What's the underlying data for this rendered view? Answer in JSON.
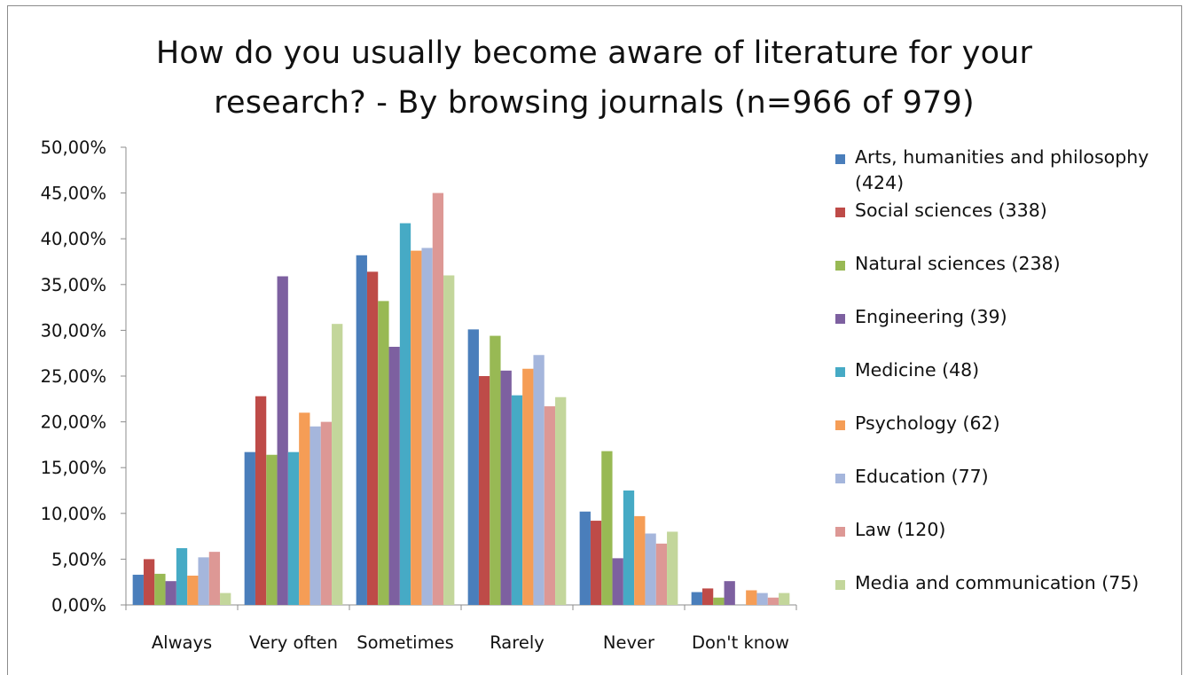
{
  "chart_data": {
    "type": "bar",
    "title": "How do you usually become aware of literature for your research? - By browsing journals (n=966 of 979)",
    "title_lines": [
      "How do you usually become  aware of literature for your",
      "research? - By browsing journals (n=966 of 979)"
    ],
    "categories": [
      "Always",
      "Very often",
      "Sometimes",
      "Rarely",
      "Never",
      "Don't know"
    ],
    "ylim": [
      0,
      50
    ],
    "y_ticks": [
      "0,00%",
      "5,00%",
      "10,00%",
      "15,00%",
      "20,00%",
      "25,00%",
      "30,00%",
      "35,00%",
      "40,00%",
      "45,00%",
      "50,00%"
    ],
    "grid": false,
    "legend_position": "right",
    "series": [
      {
        "name": "Arts, humanities and philosophy (424)",
        "color": "#4a7ebb",
        "values": [
          3.3,
          16.7,
          38.2,
          30.1,
          10.2,
          1.4
        ]
      },
      {
        "name": "Social sciences (338)",
        "color": "#be4b48",
        "values": [
          5.0,
          22.8,
          36.4,
          25.0,
          9.2,
          1.8
        ]
      },
      {
        "name": "Natural sciences (238)",
        "color": "#98b954",
        "values": [
          3.4,
          16.4,
          33.2,
          29.4,
          16.8,
          0.8
        ]
      },
      {
        "name": "Engineering (39)",
        "color": "#7d60a0",
        "values": [
          2.6,
          35.9,
          28.2,
          25.6,
          5.1,
          2.6
        ]
      },
      {
        "name": "Medicine (48)",
        "color": "#46aac5",
        "values": [
          6.2,
          16.7,
          41.7,
          22.9,
          12.5,
          0.0
        ]
      },
      {
        "name": "Psychology (62)",
        "color": "#f59d56",
        "values": [
          3.2,
          21.0,
          38.7,
          25.8,
          9.7,
          1.6
        ]
      },
      {
        "name": "Education (77)",
        "color": "#a5b6dc",
        "values": [
          5.2,
          19.5,
          39.0,
          27.3,
          7.8,
          1.3
        ]
      },
      {
        "name": "Law (120)",
        "color": "#dd9895",
        "values": [
          5.8,
          20.0,
          45.0,
          21.7,
          6.7,
          0.8
        ]
      },
      {
        "name": "Media and communication (75)",
        "color": "#c3d69b",
        "values": [
          1.3,
          30.7,
          36.0,
          22.7,
          8.0,
          1.3
        ]
      }
    ]
  }
}
